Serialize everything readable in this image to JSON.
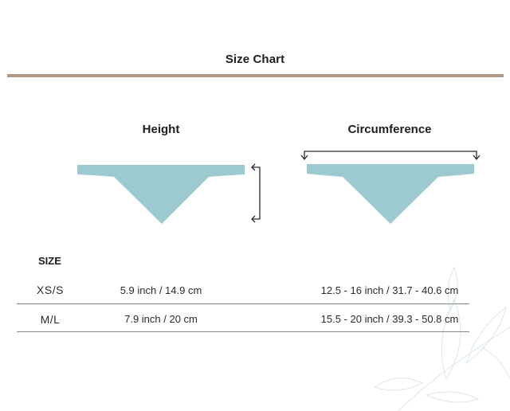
{
  "title": "Size Chart",
  "colors": {
    "rule": "#b09a86",
    "bandana": "#9ccad0",
    "divider": "#8a8a8a"
  },
  "columns": {
    "height": "Height",
    "circumference": "Circumference"
  },
  "table": {
    "size_header": "SIZE",
    "rows": [
      {
        "size": "XS/S",
        "height": "5.9 inch / 14.9 cm",
        "circumference": "12.5 - 16 inch / 31.7 - 40.6 cm"
      },
      {
        "size": "M/L",
        "height": "7.9 inch / 20 cm",
        "circumference": "15.5 - 20 inch / 39.3 - 50.8 cm"
      }
    ]
  },
  "icons": {
    "height_arrow": "vertical-bracket-arrow-icon",
    "circumference_arrow": "horizontal-bracket-arrow-icon",
    "decoration": "leaf-watermark-icon"
  }
}
